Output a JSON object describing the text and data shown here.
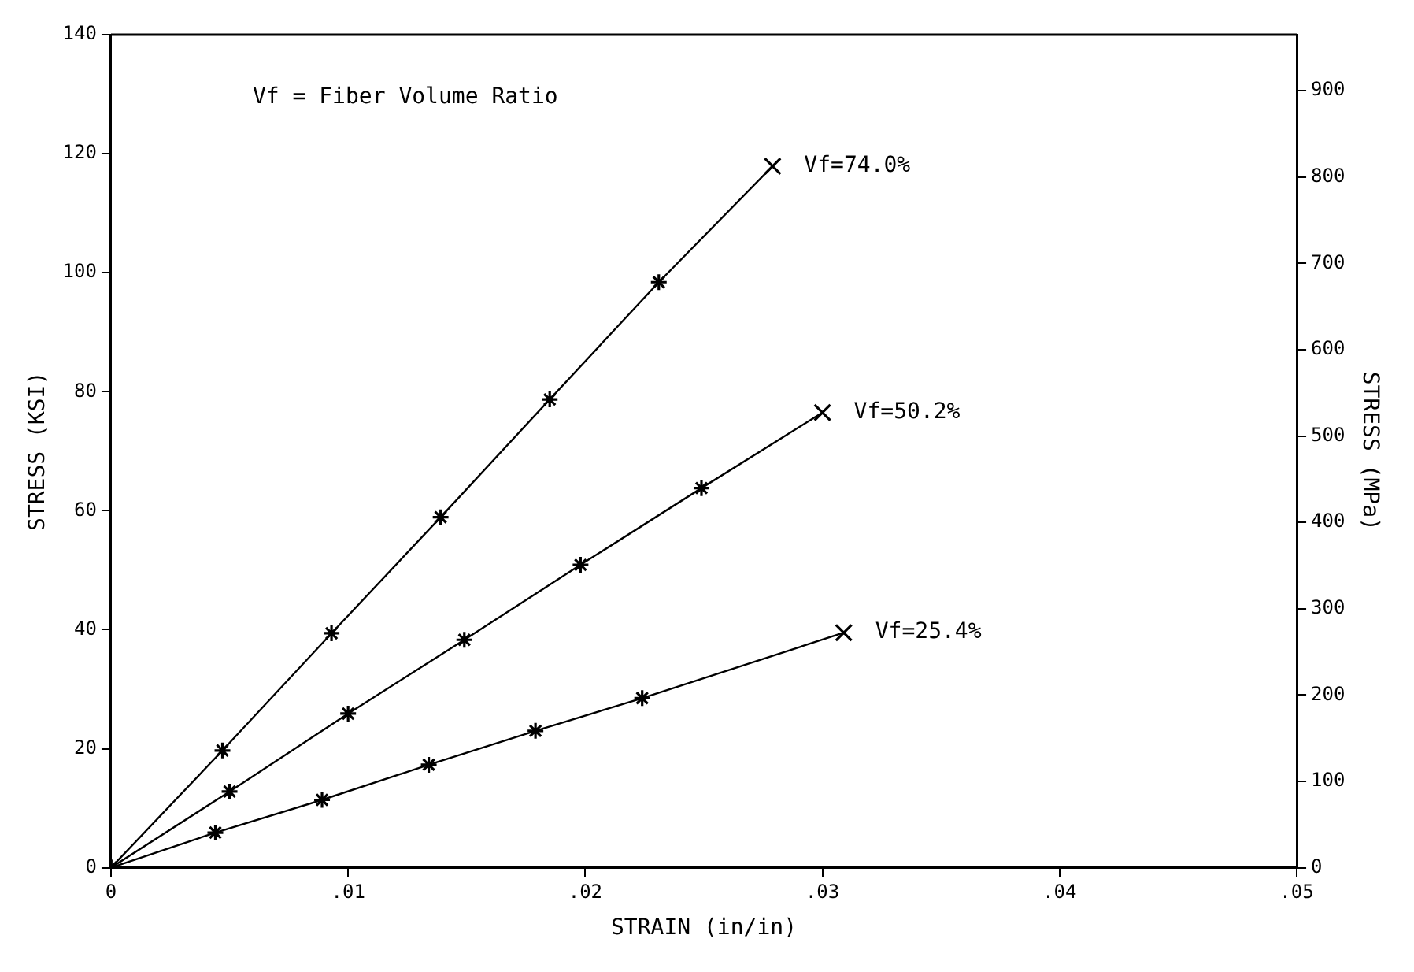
{
  "chart_data": {
    "type": "line",
    "xlabel": "STRAIN (in/in)",
    "ylabel": "STRESS (KSI)",
    "y2label": "STRESS (MPa)",
    "xlim": [
      0,
      0.05
    ],
    "xticks": [
      {
        "value": 0,
        "label": "0"
      },
      {
        "value": 0.01,
        "label": ".01"
      },
      {
        "value": 0.02,
        "label": ".02"
      },
      {
        "value": 0.03,
        "label": ".03"
      },
      {
        "value": 0.04,
        "label": ".04"
      },
      {
        "value": 0.05,
        "label": ".05"
      }
    ],
    "ylim": [
      0,
      140
    ],
    "yticks": [
      0,
      20,
      40,
      60,
      80,
      100,
      120,
      140
    ],
    "y2lim": [
      0,
      965
    ],
    "y2ticks": [
      0,
      100,
      200,
      300,
      400,
      500,
      600,
      700,
      800,
      900
    ],
    "grid": false,
    "legend": false,
    "marker": "cross",
    "line_style": "solid",
    "series": [
      {
        "color": "#000000",
        "x": [
          0,
          0.0047,
          0.0093,
          0.0139,
          0.0185,
          0.0231,
          0.0279
        ],
        "values": [
          0,
          19.7,
          39.4,
          58.9,
          78.7,
          98.4,
          117.9
        ]
      },
      {
        "color": "#000000",
        "x": [
          0,
          0.005,
          0.01,
          0.0149,
          0.0198,
          0.0249,
          0.03
        ],
        "values": [
          0,
          12.8,
          25.9,
          38.3,
          50.9,
          63.8,
          76.5
        ]
      },
      {
        "color": "#000000",
        "x": [
          0,
          0.0044,
          0.0089,
          0.0134,
          0.0179,
          0.0224,
          0.0309
        ],
        "values": [
          0,
          5.9,
          11.4,
          17.3,
          23.0,
          28.5,
          39.5
        ]
      }
    ],
    "annotations": [
      "Vf = Fiber Volume Ratio",
      {
        "text": "Vf=74.0%",
        "x": 0.0279,
        "y": 117.9
      },
      {
        "text": "Vf=50.2%",
        "x": 0.03,
        "y": 76.5
      },
      {
        "text": "Vf=25.4%",
        "x": 0.0309,
        "y": 39.5
      }
    ]
  }
}
